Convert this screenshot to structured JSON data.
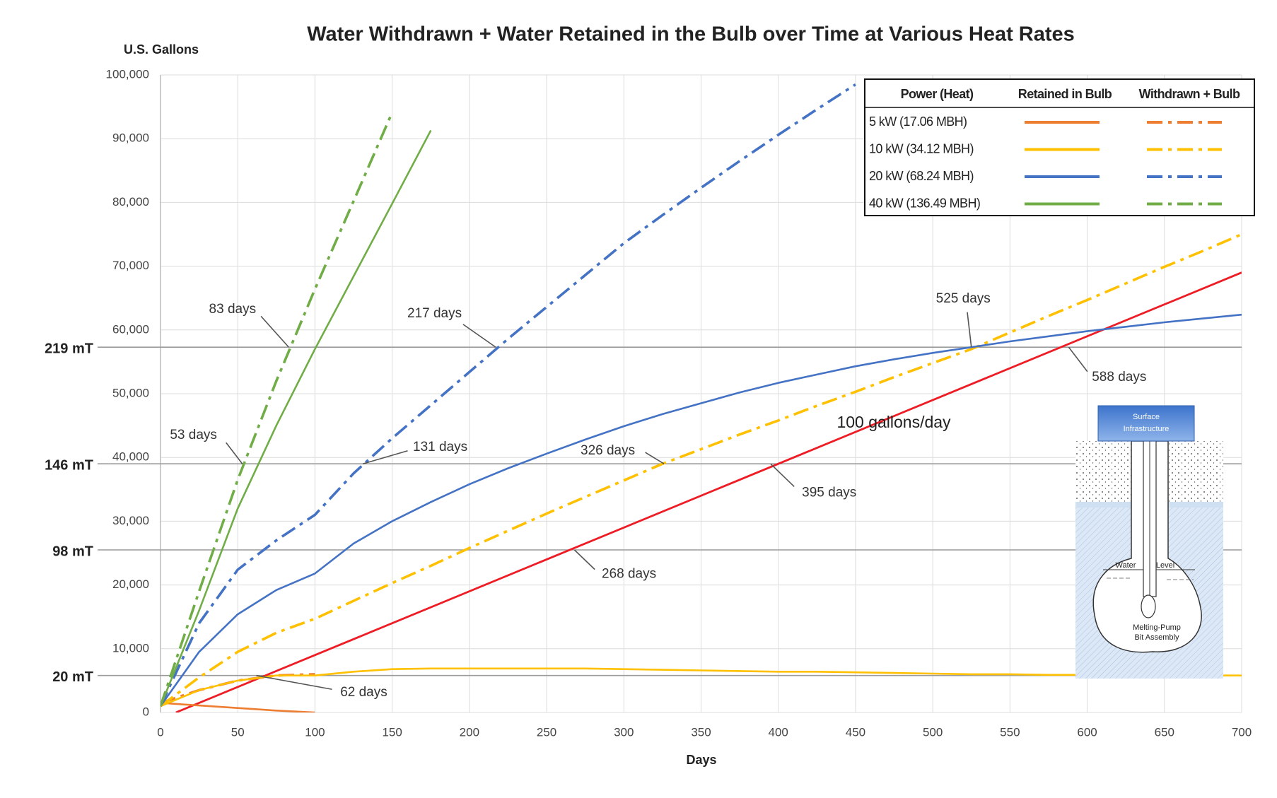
{
  "chart_data": {
    "type": "line",
    "title": "Water Withdrawn + Water Retained in the Bulb over Time at Various Heat Rates",
    "y_label": "U.S. Gallons",
    "x_label": "Days",
    "xlim": [
      0,
      700
    ],
    "xticks": [
      0,
      50,
      100,
      150,
      200,
      250,
      300,
      350,
      400,
      450,
      500,
      550,
      600,
      650,
      700
    ],
    "ylim": [
      0,
      100000
    ],
    "yticks": [
      0,
      {
        "value": 10000,
        "label": "10,000"
      },
      {
        "value": 20000,
        "label": "20,000"
      },
      {
        "value": 30000,
        "label": "30,000"
      },
      {
        "value": 40000,
        "label": "40,000"
      },
      {
        "value": 50000,
        "label": "50,000"
      },
      {
        "value": 60000,
        "label": "60,000"
      },
      {
        "value": 70000,
        "label": "70,000"
      },
      {
        "value": 80000,
        "label": "80,000"
      },
      {
        "value": 90000,
        "label": "90,000"
      },
      {
        "value": 100000,
        "label": "100,000"
      }
    ],
    "grid": true,
    "x": [
      0,
      25,
      50,
      75,
      100,
      125,
      150,
      175,
      200,
      225,
      250,
      275,
      300,
      325,
      350,
      375,
      400,
      425,
      450,
      475,
      500,
      525,
      550,
      575,
      600,
      625,
      650,
      675,
      700
    ],
    "legend": {
      "corner": "top-right",
      "columns": [
        "Power (Heat)",
        "Retained in Bulb",
        "Withdrawn + Bulb"
      ]
    },
    "series": [
      {
        "name": "5 kW (17.06 MBH)",
        "color": "#ed7d31",
        "values": [
          1500,
          1100,
          700,
          300,
          0,
          null,
          null,
          null,
          null,
          null,
          null,
          null,
          null,
          null,
          null,
          null,
          null,
          null,
          null,
          null,
          null,
          null,
          null,
          null,
          null,
          null,
          null,
          null,
          null
        ],
        "withdrawn_values": [
          1500,
          3500,
          5000,
          5800,
          6000,
          null,
          null,
          null,
          null,
          null,
          null,
          null,
          null,
          null,
          null,
          null,
          null,
          null,
          null,
          null,
          null,
          null,
          null,
          null,
          null,
          null,
          null,
          null,
          null
        ]
      },
      {
        "name": "10 kW (34.12 MBH)",
        "color": "#ffc000",
        "values": [
          1000,
          3500,
          5000,
          5800,
          5800,
          6400,
          6800,
          6900,
          6900,
          6900,
          6900,
          6900,
          6800,
          6700,
          6600,
          6500,
          6400,
          6400,
          6300,
          6200,
          6100,
          6000,
          6000,
          5900,
          5900,
          5800,
          5800,
          5800,
          5800
        ],
        "withdrawn_values": [
          1000,
          5500,
          9500,
          12500,
          14700,
          17500,
          20300,
          23000,
          25800,
          28500,
          31200,
          33800,
          36400,
          39000,
          41300,
          43600,
          45800,
          48100,
          50300,
          52600,
          54800,
          57000,
          59600,
          62200,
          64700,
          67300,
          69900,
          72400,
          75000
        ]
      },
      {
        "name": "20 kW (68.24 MBH)",
        "color": "#4472c4",
        "values": [
          1000,
          9500,
          15400,
          19200,
          21800,
          26500,
          30000,
          33000,
          35800,
          38300,
          40600,
          42800,
          44900,
          46800,
          48500,
          50200,
          51700,
          53000,
          54300,
          55400,
          56400,
          57300,
          58200,
          59000,
          59800,
          60500,
          61200,
          61800,
          62400
        ],
        "withdrawn_values": [
          1000,
          14000,
          22400,
          27000,
          31000,
          37500,
          43000,
          48200,
          53400,
          58600,
          63600,
          68600,
          73600,
          78000,
          82300,
          86500,
          90600,
          94600,
          98500,
          null,
          null,
          null,
          null,
          null,
          null,
          null,
          null,
          null,
          null
        ]
      },
      {
        "name": "40 kW (136.49 MBH)",
        "color": "#70ad47",
        "values": [
          1000,
          16000,
          32000,
          45000,
          57000,
          68400,
          79800,
          91300,
          null,
          null,
          null,
          null,
          null,
          null,
          null,
          null,
          null,
          null,
          null,
          null,
          null,
          null,
          null,
          null,
          null,
          null,
          null,
          null,
          null
        ],
        "withdrawn_values": [
          1000,
          19000,
          36500,
          52000,
          66400,
          80200,
          94100,
          null,
          null,
          null,
          null,
          null,
          null,
          null,
          null,
          null,
          null,
          null,
          null,
          null,
          null,
          null,
          null,
          null,
          null,
          null,
          null,
          null,
          null
        ]
      }
    ],
    "rate_line": {
      "label": "100 gallons/day",
      "color": "#ee1c25",
      "x": [
        10,
        700
      ],
      "values": [
        0,
        69000
      ]
    },
    "reference_lines": [
      {
        "label": "219 mT",
        "value": 57300
      },
      {
        "label": "146 mT",
        "value": 39000
      },
      {
        "label": "98 mT",
        "value": 25500
      },
      {
        "label": "20 mT",
        "value": 5800
      }
    ],
    "annotations": [
      {
        "text": "83 days",
        "x": 83,
        "y": 57300
      },
      {
        "text": "53 days",
        "x": 53,
        "y": 39000
      },
      {
        "text": "217 days",
        "x": 217,
        "y": 57300
      },
      {
        "text": "131 days",
        "x": 131,
        "y": 39000
      },
      {
        "text": "525 days",
        "x": 525,
        "y": 57300
      },
      {
        "text": "588 days",
        "x": 588,
        "y": 57300
      },
      {
        "text": "326 days",
        "x": 326,
        "y": 39000
      },
      {
        "text": "395 days",
        "x": 395,
        "y": 39000
      },
      {
        "text": "268 days",
        "x": 268,
        "y": 25500
      },
      {
        "text": "62 days",
        "x": 62,
        "y": 5800
      }
    ],
    "inset": {
      "surface_label": [
        "Surface",
        "Infrastructure"
      ],
      "water_label": [
        "Water",
        "Level"
      ],
      "bit_label": [
        "Melting-Pump",
        "Bit Assembly"
      ]
    }
  }
}
